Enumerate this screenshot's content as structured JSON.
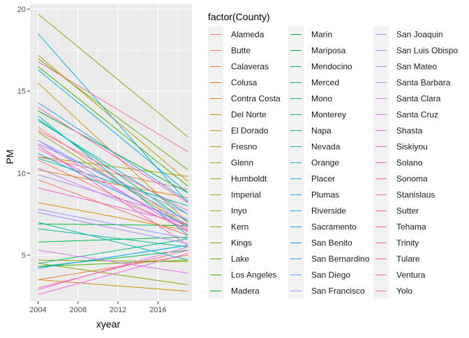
{
  "chart_data": {
    "type": "line",
    "xlabel": "xyear",
    "ylabel": "PM",
    "x_ticks": [
      2004,
      2008,
      2012,
      2016
    ],
    "y_ticks": [
      5,
      10,
      15,
      20
    ],
    "xlim": [
      2003.2,
      2019.4
    ],
    "ylim": [
      2.2,
      20.3
    ],
    "grid": true,
    "legend_position": "right",
    "legend_title": "factor(County)",
    "series": [
      {
        "name": "Alameda",
        "color": "#F8766D",
        "values": [
          [
            2004,
            11.0
          ],
          [
            2019,
            9.0
          ]
        ]
      },
      {
        "name": "Butte",
        "color": "#F27D53",
        "values": [
          [
            2004,
            12.8
          ],
          [
            2019,
            6.8
          ]
        ]
      },
      {
        "name": "Calaveras",
        "color": "#EA8331",
        "values": [
          [
            2004,
            3.5
          ],
          [
            2019,
            5.0
          ]
        ]
      },
      {
        "name": "Colusa",
        "color": "#E38900",
        "values": [
          [
            2004,
            8.2
          ],
          [
            2019,
            6.5
          ]
        ]
      },
      {
        "name": "Contra Costa",
        "color": "#DB8E00",
        "values": [
          [
            2004,
            10.2
          ],
          [
            2019,
            8.5
          ]
        ]
      },
      {
        "name": "Del Norte",
        "color": "#D39200",
        "values": [
          [
            2004,
            3.5
          ],
          [
            2019,
            2.8
          ]
        ]
      },
      {
        "name": "El Dorado",
        "color": "#C99800",
        "values": [
          [
            2004,
            15.5
          ],
          [
            2019,
            7.0
          ]
        ]
      },
      {
        "name": "Fresno",
        "color": "#BE9C00",
        "values": [
          [
            2004,
            17.2
          ],
          [
            2019,
            9.5
          ]
        ]
      },
      {
        "name": "Glenn",
        "color": "#B3A000",
        "values": [
          [
            2004,
            11.0
          ],
          [
            2019,
            9.8
          ]
        ]
      },
      {
        "name": "Humboldt",
        "color": "#A6A400",
        "values": [
          [
            2004,
            4.7
          ],
          [
            2019,
            4.6
          ]
        ]
      },
      {
        "name": "Imperial",
        "color": "#98A800",
        "values": [
          [
            2004,
            12.5
          ],
          [
            2019,
            6.7
          ]
        ]
      },
      {
        "name": "Inyo",
        "color": "#8AAB00",
        "values": [
          [
            2004,
            4.5
          ],
          [
            2019,
            3.2
          ]
        ]
      },
      {
        "name": "Kern",
        "color": "#7AAE00",
        "values": [
          [
            2004,
            19.7
          ],
          [
            2019,
            12.2
          ]
        ]
      },
      {
        "name": "Kings",
        "color": "#68B100",
        "values": [
          [
            2004,
            17.0
          ],
          [
            2019,
            10.2
          ]
        ]
      },
      {
        "name": "Lake",
        "color": "#53B400",
        "values": [
          [
            2004,
            4.3
          ],
          [
            2019,
            4.7
          ]
        ]
      },
      {
        "name": "Los Angeles",
        "color": "#38B600",
        "values": [
          [
            2004,
            16.5
          ],
          [
            2019,
            9.2
          ]
        ]
      },
      {
        "name": "Madera",
        "color": "#00B81F",
        "values": [
          [
            2004,
            13.8
          ],
          [
            2019,
            8.8
          ]
        ]
      },
      {
        "name": "Marin",
        "color": "#00BA38",
        "values": [
          [
            2004,
            6.9
          ],
          [
            2019,
            6.8
          ]
        ]
      },
      {
        "name": "Mariposa",
        "color": "#00BB4E",
        "values": [
          [
            2004,
            5.8
          ],
          [
            2019,
            6.1
          ]
        ]
      },
      {
        "name": "Mendocino",
        "color": "#00BC62",
        "values": [
          [
            2004,
            4.3
          ],
          [
            2019,
            5.3
          ]
        ]
      },
      {
        "name": "Merced",
        "color": "#00BD74",
        "values": [
          [
            2004,
            13.3
          ],
          [
            2019,
            7.0
          ]
        ]
      },
      {
        "name": "Mono",
        "color": "#00BE85",
        "values": [
          [
            2004,
            4.5
          ],
          [
            2019,
            6.0
          ]
        ]
      },
      {
        "name": "Monterey",
        "color": "#00C096",
        "values": [
          [
            2004,
            6.6
          ],
          [
            2019,
            5.5
          ]
        ]
      },
      {
        "name": "Napa",
        "color": "#00BFA6",
        "values": [
          [
            2004,
            10.9
          ],
          [
            2019,
            8.0
          ]
        ]
      },
      {
        "name": "Nevada",
        "color": "#00BEB5",
        "values": [
          [
            2004,
            7.0
          ],
          [
            2019,
            4.7
          ]
        ]
      },
      {
        "name": "Orange",
        "color": "#00BCC3",
        "values": [
          [
            2004,
            13.2
          ],
          [
            2019,
            7.5
          ]
        ]
      },
      {
        "name": "Placer",
        "color": "#00BAD0",
        "values": [
          [
            2004,
            13.5
          ],
          [
            2019,
            6.2
          ]
        ]
      },
      {
        "name": "Plumas",
        "color": "#00B7DC",
        "values": [
          [
            2004,
            18.5
          ],
          [
            2019,
            8.2
          ]
        ]
      },
      {
        "name": "Riverside",
        "color": "#00B4E6",
        "values": [
          [
            2004,
            16.3
          ],
          [
            2019,
            8.8
          ]
        ]
      },
      {
        "name": "Sacramento",
        "color": "#00B0F0",
        "values": [
          [
            2004,
            11.2
          ],
          [
            2019,
            6.8
          ]
        ]
      },
      {
        "name": "San Benito",
        "color": "#00ABF8",
        "values": [
          [
            2004,
            4.2
          ],
          [
            2019,
            5.6
          ]
        ]
      },
      {
        "name": "San Bernardino",
        "color": "#35A2FF",
        "values": [
          [
            2004,
            14.3
          ],
          [
            2019,
            8.3
          ]
        ]
      },
      {
        "name": "San Diego",
        "color": "#5F9BFF",
        "values": [
          [
            2004,
            12.0
          ],
          [
            2019,
            7.1
          ]
        ]
      },
      {
        "name": "San Francisco",
        "color": "#7C96FF",
        "values": [
          [
            2004,
            11.8
          ],
          [
            2019,
            7.5
          ]
        ]
      },
      {
        "name": "San Joaquin",
        "color": "#9590FF",
        "values": [
          [
            2004,
            7.8
          ],
          [
            2019,
            6.0
          ]
        ]
      },
      {
        "name": "San Luis Obispo",
        "color": "#A98AFF",
        "values": [
          [
            2004,
            7.6
          ],
          [
            2019,
            5.7
          ]
        ]
      },
      {
        "name": "San Mateo",
        "color": "#BB83FF",
        "values": [
          [
            2004,
            9.9
          ],
          [
            2019,
            7.2
          ]
        ]
      },
      {
        "name": "Santa Barbara",
        "color": "#CB7BFF",
        "values": [
          [
            2004,
            10.3
          ],
          [
            2019,
            6.6
          ]
        ]
      },
      {
        "name": "Santa Clara",
        "color": "#D874FD",
        "values": [
          [
            2004,
            12.0
          ],
          [
            2019,
            6.4
          ]
        ]
      },
      {
        "name": "Santa Cruz",
        "color": "#E46DF6",
        "values": [
          [
            2004,
            5.3
          ],
          [
            2019,
            3.9
          ]
        ]
      },
      {
        "name": "Shasta",
        "color": "#EC69EE",
        "values": [
          [
            2004,
            2.9
          ],
          [
            2019,
            5.5
          ]
        ]
      },
      {
        "name": "Siskiyou",
        "color": "#F365E6",
        "values": [
          [
            2004,
            2.6
          ],
          [
            2019,
            5.1
          ]
        ]
      },
      {
        "name": "Solano",
        "color": "#F863DC",
        "values": [
          [
            2004,
            11.5
          ],
          [
            2019,
            6.7
          ]
        ]
      },
      {
        "name": "Sonoma",
        "color": "#FB62D1",
        "values": [
          [
            2004,
            9.1
          ],
          [
            2019,
            6.9
          ]
        ]
      },
      {
        "name": "Stanislaus",
        "color": "#FE61C6",
        "values": [
          [
            2004,
            14.0
          ],
          [
            2019,
            8.2
          ]
        ]
      },
      {
        "name": "Sutter",
        "color": "#FF62B9",
        "values": [
          [
            2004,
            11.7
          ],
          [
            2019,
            5.6
          ]
        ]
      },
      {
        "name": "Tehama",
        "color": "#FF64AB",
        "values": [
          [
            2004,
            12.6
          ],
          [
            2019,
            7.7
          ]
        ]
      },
      {
        "name": "Trinity",
        "color": "#FF679C",
        "values": [
          [
            2004,
            3.0
          ],
          [
            2019,
            5.3
          ]
        ]
      },
      {
        "name": "Tulare",
        "color": "#FD6B8C",
        "values": [
          [
            2004,
            16.8
          ],
          [
            2019,
            11.3
          ]
        ]
      },
      {
        "name": "Ventura",
        "color": "#FA707C",
        "values": [
          [
            2004,
            10.8
          ],
          [
            2019,
            6.5
          ]
        ]
      },
      {
        "name": "Yolo",
        "color": "#F8766D",
        "values": [
          [
            2004,
            9.6
          ],
          [
            2019,
            6.2
          ]
        ]
      }
    ]
  }
}
